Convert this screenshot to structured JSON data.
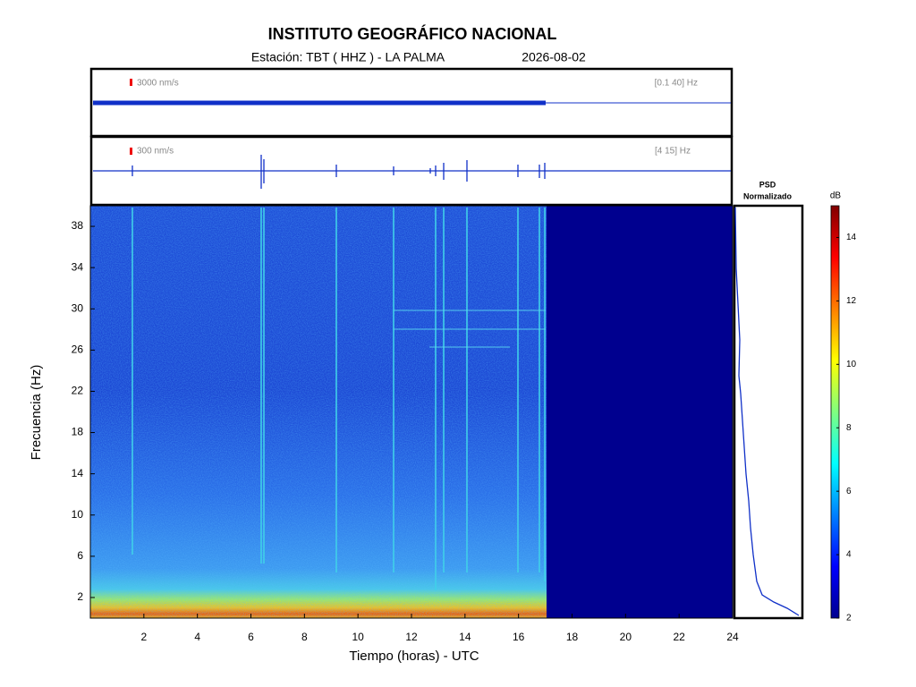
{
  "title": "INSTITUTO GEOGRÁFICO NACIONAL",
  "station": "Estación:  TBT ( HHZ ) - LA PALMA",
  "date": "2026-08-02",
  "traces": [
    {
      "scale": "3000 nm/s",
      "band": "[0.1 40] Hz"
    },
    {
      "scale": "300 nm/s",
      "band": "[4 15] Hz"
    }
  ],
  "chart_data": {
    "type": "spectrogram",
    "xlabel": "Tiempo (horas) - UTC",
    "ylabel": "Frecuencia  (Hz)",
    "xlim": [
      0,
      24
    ],
    "xticks": [
      2,
      4,
      6,
      8,
      10,
      12,
      14,
      16,
      18,
      20,
      22,
      24
    ],
    "ylim": [
      0,
      40
    ],
    "yticks": [
      2,
      6,
      10,
      14,
      18,
      22,
      26,
      30,
      34,
      38
    ],
    "psd_title": [
      "PSD",
      "Normalizado"
    ],
    "colorbar": {
      "label": "dB",
      "lim": [
        2,
        15
      ],
      "ticks": [
        2,
        4,
        6,
        8,
        10,
        12,
        14
      ]
    }
  }
}
